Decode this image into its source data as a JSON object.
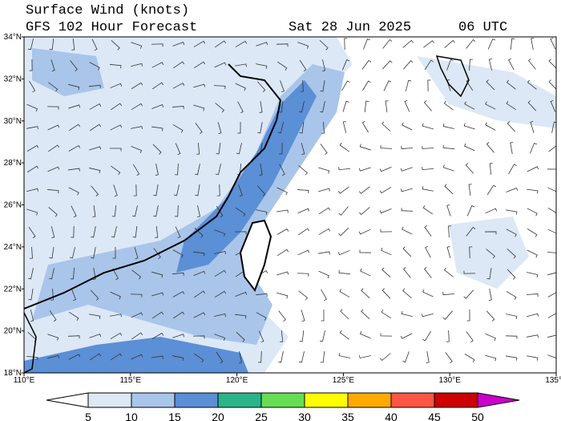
{
  "header": {
    "title": "Surface Wind (knots)",
    "subtitle": "GFS 102 Hour Forecast",
    "date": "Sat 28 Jun 2025",
    "time": "06 UTC"
  },
  "map": {
    "lon_range": [
      110,
      135
    ],
    "lat_range": [
      18,
      34
    ],
    "lon_ticks": [
      {
        "value": 110,
        "label": "110°E"
      },
      {
        "value": 115,
        "label": "115°E"
      },
      {
        "value": 120,
        "label": "120°E"
      },
      {
        "value": 125,
        "label": "125°E"
      },
      {
        "value": 130,
        "label": "130°E"
      },
      {
        "value": 135,
        "label": "135°E"
      }
    ],
    "lat_ticks": [
      {
        "value": 18,
        "label": "18°N"
      },
      {
        "value": 20,
        "label": "20°N"
      },
      {
        "value": 22,
        "label": "22°N"
      },
      {
        "value": 24,
        "label": "24°N"
      },
      {
        "value": 26,
        "label": "26°N"
      },
      {
        "value": 28,
        "label": "28°N"
      },
      {
        "value": 30,
        "label": "30°N"
      },
      {
        "value": 32,
        "label": "32°N"
      },
      {
        "value": 34,
        "label": "34°N"
      }
    ]
  },
  "colorbar": {
    "levels": [
      5,
      10,
      15,
      20,
      25,
      30,
      35,
      40,
      45,
      50
    ],
    "colors": [
      "#ffffff",
      "#dce8f6",
      "#a9c5ea",
      "#5b8fd6",
      "#2ab48a",
      "#66dd55",
      "#ffff00",
      "#ffaa00",
      "#ff5544",
      "#cc0000",
      "#cc00cc"
    ]
  }
}
